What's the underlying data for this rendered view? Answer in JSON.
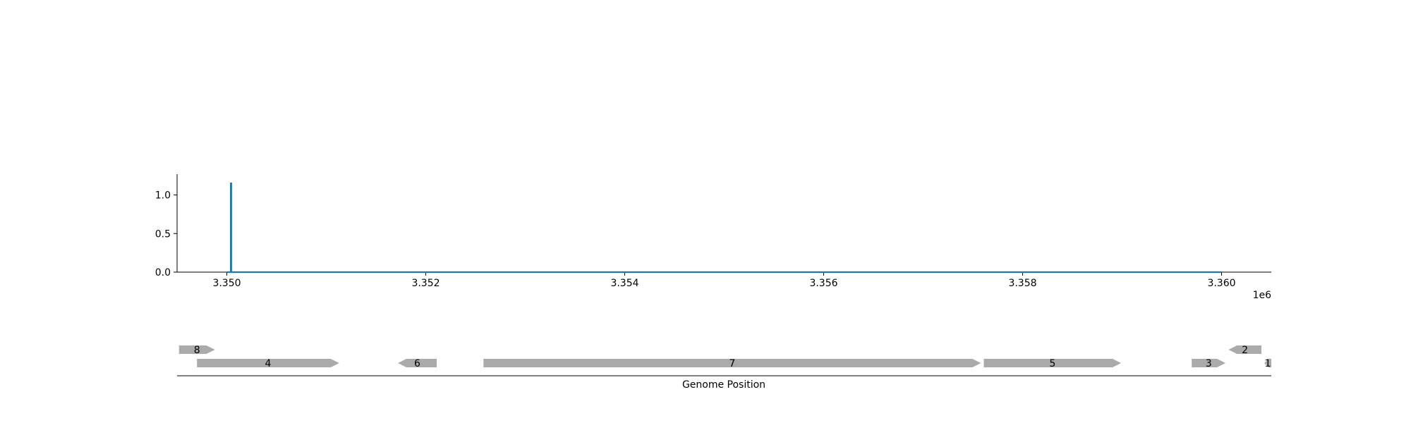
{
  "chart_data": {
    "type": "line",
    "title": "",
    "xlabel": "Genome Position",
    "ylabel": "",
    "x_offset_label": "1e6",
    "xlim": [
      3349500,
      3360500
    ],
    "ylim": [
      0,
      1.27
    ],
    "x_ticks": [
      3350000,
      3352000,
      3354000,
      3356000,
      3358000,
      3360000
    ],
    "x_tick_labels": [
      "3.350",
      "3.352",
      "3.354",
      "3.356",
      "3.358",
      "3.360"
    ],
    "y_ticks": [
      0,
      0.5,
      1.0
    ],
    "y_tick_labels": [
      "0.0",
      "0.5",
      "1.0"
    ],
    "grid": false,
    "series": [
      {
        "color": "#1f77b4",
        "x": [
          3350000,
          3350040,
          3350040,
          3350045,
          3350045,
          3360000
        ],
        "y": [
          0,
          0,
          1.15,
          1.15,
          0,
          0
        ]
      }
    ],
    "genes": [
      {
        "label": "8",
        "start": 3349520,
        "end": 3349880,
        "strand": "+",
        "row": 0
      },
      {
        "label": "2",
        "start": 3360070,
        "end": 3360400,
        "strand": "-",
        "row": 0
      },
      {
        "label": "4",
        "start": 3349700,
        "end": 3351130,
        "strand": "+",
        "row": 1
      },
      {
        "label": "6",
        "start": 3351720,
        "end": 3352110,
        "strand": "-",
        "row": 1
      },
      {
        "label": "7",
        "start": 3352580,
        "end": 3357580,
        "strand": "+",
        "row": 1
      },
      {
        "label": "5",
        "start": 3357610,
        "end": 3358990,
        "strand": "+",
        "row": 1
      },
      {
        "label": "3",
        "start": 3359700,
        "end": 3360040,
        "strand": "+",
        "row": 1
      },
      {
        "label": "1",
        "start": 3360430,
        "end": 3360500,
        "strand": "-",
        "row": 1
      }
    ],
    "gene_color": "#aaaaaa"
  }
}
